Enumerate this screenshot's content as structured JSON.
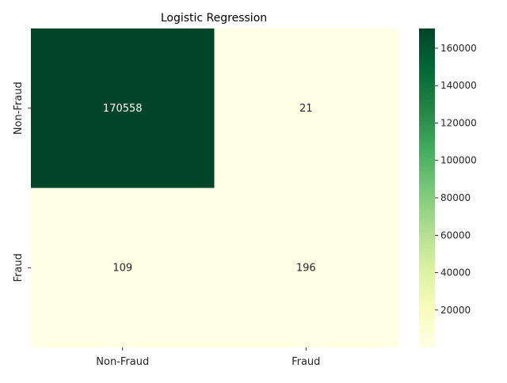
{
  "chart_data": {
    "type": "heatmap",
    "title": "Logistic Regression",
    "xlabel": "",
    "ylabel": "",
    "x_categories": [
      "Non-Fraud",
      "Fraud"
    ],
    "y_categories": [
      "Non-Fraud",
      "Fraud"
    ],
    "matrix": [
      [
        170558,
        21
      ],
      [
        109,
        196
      ]
    ],
    "cell_labels": [
      [
        "170558",
        "21"
      ],
      [
        "109",
        "196"
      ]
    ],
    "colormap": "YlGn",
    "color_low": "#ffffe5",
    "color_high": "#004529",
    "colorbar": {
      "min": 21,
      "max": 170558,
      "ticks": [
        20000,
        40000,
        60000,
        80000,
        100000,
        120000,
        140000,
        160000
      ],
      "tick_labels": [
        "20000",
        "40000",
        "60000",
        "80000",
        "100000",
        "120000",
        "140000",
        "160000"
      ]
    }
  }
}
